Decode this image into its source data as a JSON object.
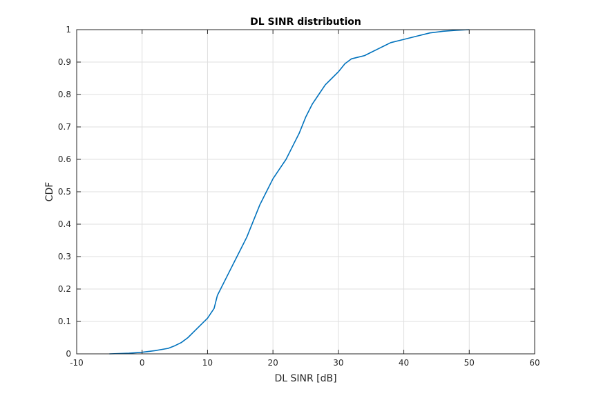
{
  "chart_data": {
    "type": "line",
    "title": "DL SINR distribution",
    "xlabel": "DL SINR [dB]",
    "ylabel": "CDF",
    "xlim": [
      -10,
      60
    ],
    "ylim": [
      0,
      1
    ],
    "xticks": [
      -10,
      0,
      10,
      20,
      30,
      40,
      50,
      60
    ],
    "yticks": [
      0,
      0.1,
      0.2,
      0.3,
      0.4,
      0.5,
      0.6,
      0.7,
      0.8,
      0.9,
      1
    ],
    "xtick_labels": [
      "-10",
      "0",
      "10",
      "20",
      "30",
      "40",
      "50",
      "60"
    ],
    "ytick_labels": [
      "0",
      "0.1",
      "0.2",
      "0.3",
      "0.4",
      "0.5",
      "0.6",
      "0.7",
      "0.8",
      "0.9",
      "1"
    ],
    "grid": true,
    "line_color": "#0072BD",
    "series": [
      {
        "x": [
          -5,
          -2,
          0,
          2,
          4,
          5,
          6,
          7,
          8,
          9,
          10,
          11,
          11.5,
          12,
          13,
          14,
          15,
          16,
          17,
          18,
          19,
          20,
          21,
          22,
          23,
          24,
          25,
          26,
          27,
          28,
          29,
          30,
          31,
          32,
          33,
          34,
          35,
          36,
          37,
          38,
          40,
          42,
          44,
          46,
          48,
          50
        ],
        "y": [
          0,
          0.002,
          0.005,
          0.01,
          0.017,
          0.025,
          0.035,
          0.05,
          0.07,
          0.09,
          0.11,
          0.14,
          0.18,
          0.2,
          0.24,
          0.28,
          0.32,
          0.36,
          0.41,
          0.46,
          0.5,
          0.54,
          0.57,
          0.6,
          0.64,
          0.68,
          0.73,
          0.77,
          0.8,
          0.83,
          0.85,
          0.87,
          0.895,
          0.91,
          0.915,
          0.92,
          0.93,
          0.94,
          0.95,
          0.96,
          0.97,
          0.98,
          0.99,
          0.995,
          0.998,
          1
        ]
      }
    ]
  }
}
